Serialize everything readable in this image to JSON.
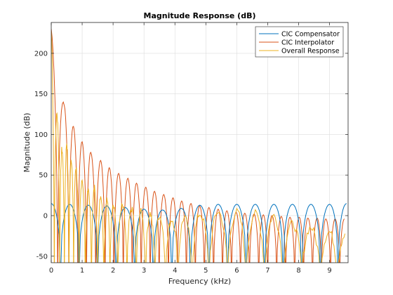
{
  "chart_data": {
    "type": "line",
    "title": "Magnitude Response (dB)",
    "xlabel": "Frequency (kHz)",
    "ylabel": "Magnitude (dB)",
    "xlim": [
      0,
      9.6
    ],
    "ylim": [
      -58,
      238
    ],
    "xticks": [
      0,
      1,
      2,
      3,
      4,
      5,
      6,
      7,
      8,
      9
    ],
    "yticks": [
      -50,
      0,
      50,
      100,
      150,
      200
    ],
    "grid": true,
    "legend_position": "top-right",
    "colors": {
      "compensator": "#0072BD",
      "interpolator": "#D95319",
      "overall": "#EDB120"
    },
    "series": [
      {
        "name": "CIC Compensator",
        "color": "#0072BD",
        "description_lobes": "passband rises to ~15 dB near 0 kHz, deep nulls, ~15 dB peaks every ~0.6 kHz",
        "peaks": [
          {
            "x": 0.0,
            "y": 15
          },
          {
            "x": 0.6,
            "y": 14
          },
          {
            "x": 1.2,
            "y": 13
          },
          {
            "x": 1.8,
            "y": 12
          },
          {
            "x": 2.4,
            "y": 10
          },
          {
            "x": 3.0,
            "y": 8
          },
          {
            "x": 3.6,
            "y": 7
          },
          {
            "x": 4.2,
            "y": 9
          },
          {
            "x": 4.8,
            "y": 13
          },
          {
            "x": 5.4,
            "y": 14
          },
          {
            "x": 6.0,
            "y": 14
          },
          {
            "x": 6.6,
            "y": 14
          },
          {
            "x": 7.2,
            "y": 14
          },
          {
            "x": 7.8,
            "y": 14
          },
          {
            "x": 8.4,
            "y": 14
          },
          {
            "x": 9.0,
            "y": 14
          },
          {
            "x": 9.55,
            "y": 15
          }
        ]
      },
      {
        "name": "CIC Interpolator",
        "color": "#D95319",
        "peaks": [
          {
            "x": 0.0,
            "y": 230
          },
          {
            "x": 0.42,
            "y": 136
          },
          {
            "x": 0.72,
            "y": 110
          },
          {
            "x": 1.0,
            "y": 91
          },
          {
            "x": 1.28,
            "y": 78
          },
          {
            "x": 1.6,
            "y": 68
          },
          {
            "x": 1.88,
            "y": 59
          },
          {
            "x": 2.18,
            "y": 52
          },
          {
            "x": 2.48,
            "y": 46
          },
          {
            "x": 2.76,
            "y": 40
          },
          {
            "x": 3.06,
            "y": 35
          },
          {
            "x": 3.34,
            "y": 30
          },
          {
            "x": 3.64,
            "y": 26
          },
          {
            "x": 3.94,
            "y": 22
          },
          {
            "x": 4.22,
            "y": 18
          },
          {
            "x": 4.52,
            "y": 15
          },
          {
            "x": 4.8,
            "y": 12
          },
          {
            "x": 5.1,
            "y": 10
          },
          {
            "x": 5.4,
            "y": 8
          },
          {
            "x": 5.68,
            "y": 6
          },
          {
            "x": 5.98,
            "y": 4
          },
          {
            "x": 6.26,
            "y": 3
          },
          {
            "x": 6.56,
            "y": 2
          },
          {
            "x": 6.86,
            "y": 1
          },
          {
            "x": 7.14,
            "y": 0
          },
          {
            "x": 7.44,
            "y": -1
          },
          {
            "x": 7.72,
            "y": -2
          },
          {
            "x": 8.02,
            "y": -2
          },
          {
            "x": 8.3,
            "y": -3
          },
          {
            "x": 8.6,
            "y": -3
          },
          {
            "x": 8.88,
            "y": -4
          },
          {
            "x": 9.18,
            "y": -4
          },
          {
            "x": 9.48,
            "y": -4
          }
        ]
      },
      {
        "name": "Overall Response",
        "color": "#EDB120",
        "peaks": [
          {
            "x": 0.0,
            "y": 228
          },
          {
            "x": 0.2,
            "y": 120
          },
          {
            "x": 0.35,
            "y": 80
          },
          {
            "x": 0.5,
            "y": 90
          },
          {
            "x": 0.65,
            "y": 70
          },
          {
            "x": 0.8,
            "y": 60
          },
          {
            "x": 1.0,
            "y": 45
          },
          {
            "x": 1.2,
            "y": 30
          },
          {
            "x": 1.4,
            "y": 35
          },
          {
            "x": 1.6,
            "y": 25
          },
          {
            "x": 1.8,
            "y": 20
          },
          {
            "x": 2.0,
            "y": 15
          },
          {
            "x": 2.3,
            "y": 12
          },
          {
            "x": 2.6,
            "y": 8
          },
          {
            "x": 2.9,
            "y": 5
          },
          {
            "x": 3.2,
            "y": 3
          },
          {
            "x": 3.5,
            "y": 0
          },
          {
            "x": 3.9,
            "y": -5
          },
          {
            "x": 4.3,
            "y": -3
          },
          {
            "x": 4.8,
            "y": 2
          },
          {
            "x": 5.4,
            "y": 5
          },
          {
            "x": 6.0,
            "y": 5
          },
          {
            "x": 6.6,
            "y": 3
          },
          {
            "x": 7.2,
            "y": 0
          },
          {
            "x": 7.8,
            "y": -10
          },
          {
            "x": 8.4,
            "y": -15
          },
          {
            "x": 9.0,
            "y": -20
          },
          {
            "x": 9.5,
            "y": -25
          }
        ]
      }
    ]
  }
}
